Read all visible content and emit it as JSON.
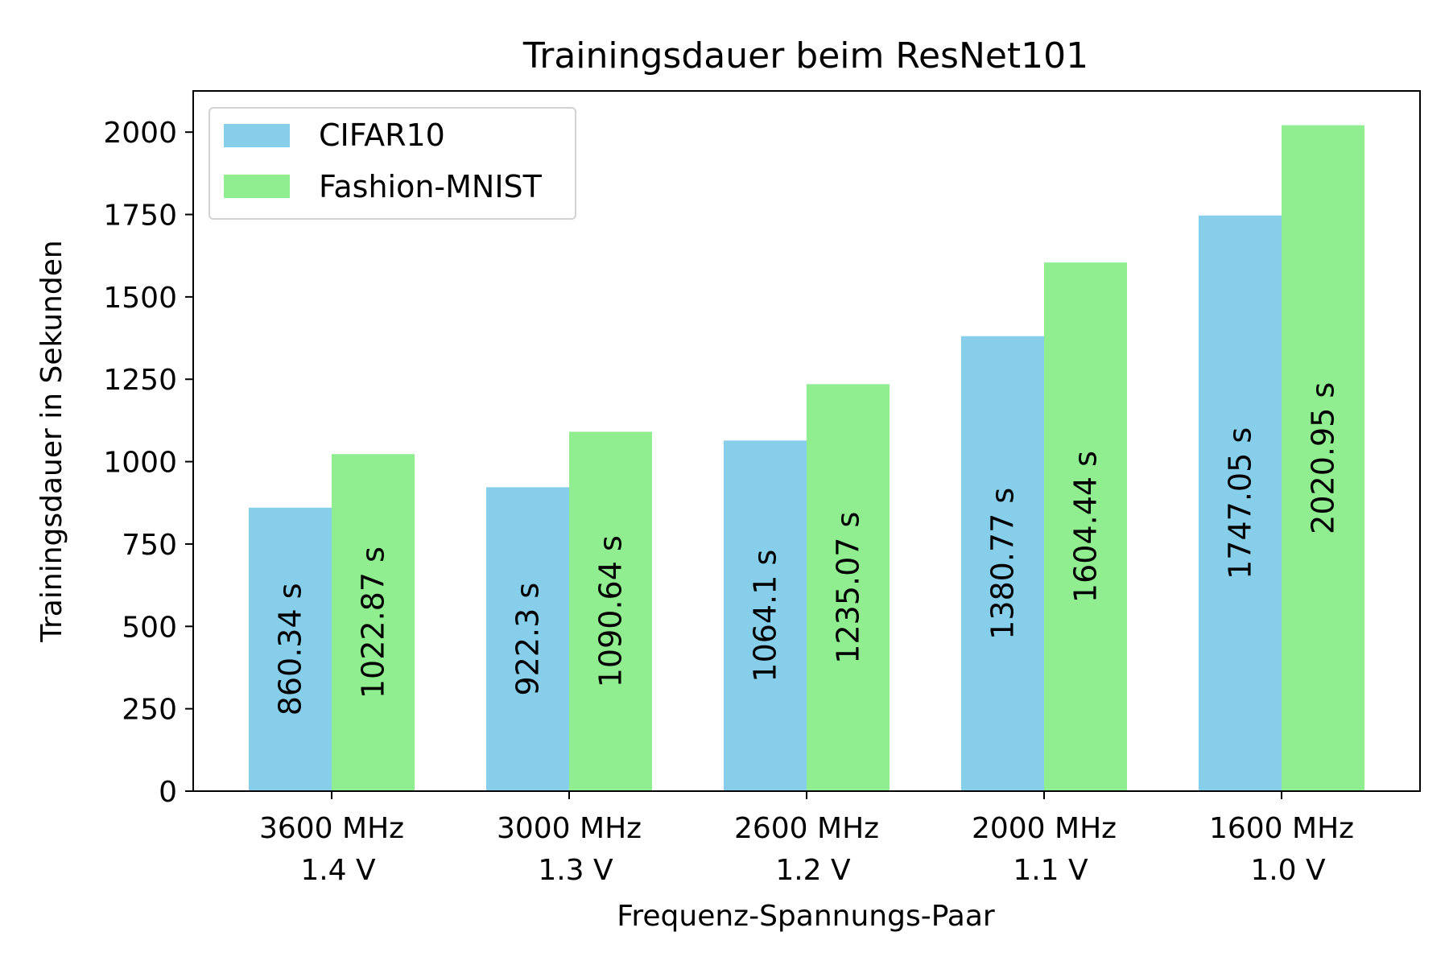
{
  "chart_data": {
    "type": "bar",
    "title": "Trainingsdauer beim ResNet101",
    "xlabel": "Frequenz-Spannungs-Paar",
    "ylabel": "Trainingsdauer in Sekunden",
    "categories": [
      [
        "3600 MHz",
        "1.4 V"
      ],
      [
        "3000 MHz",
        "1.3 V"
      ],
      [
        "2600 MHz",
        "1.2 V"
      ],
      [
        "2000 MHz",
        "1.1 V"
      ],
      [
        "1600 MHz",
        "1.0 V"
      ]
    ],
    "series": [
      {
        "name": "CIFAR10",
        "color": "#87CEEB",
        "values": [
          860.34,
          922.3,
          1064.1,
          1380.77,
          1747.05
        ],
        "labels": [
          "860.34 s",
          "922.3 s",
          "1064.1 s",
          "1380.77 s",
          "1747.05 s"
        ]
      },
      {
        "name": "Fashion-MNIST",
        "color": "#90EE90",
        "values": [
          1022.87,
          1090.64,
          1235.07,
          1604.44,
          2020.95
        ],
        "labels": [
          "1022.87 s",
          "1090.64 s",
          "1235.07 s",
          "1604.44 s",
          "2020.95 s"
        ]
      }
    ],
    "ylim": [
      0,
      2125
    ],
    "yticks": [
      0,
      250,
      500,
      750,
      1000,
      1250,
      1500,
      1750,
      2000
    ],
    "grid": false,
    "legend_position": "top-left"
  }
}
